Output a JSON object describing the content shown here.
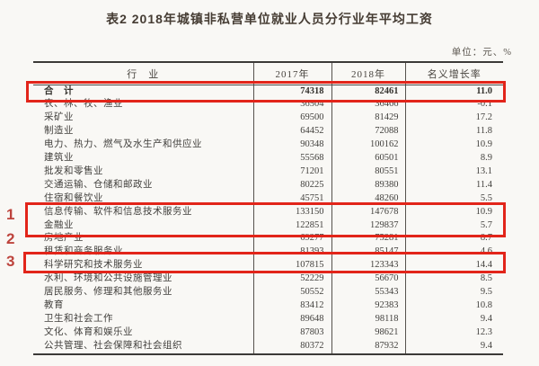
{
  "page": {
    "title": "表2  2018年城镇非私营单位就业人员分行业年平均工资",
    "unit_label": "单位：元、%"
  },
  "table": {
    "columns": [
      "行　业",
      "2017年",
      "2018年",
      "名义增长率"
    ],
    "rows": [
      {
        "industry": "合　计",
        "y2017": "74318",
        "y2018": "82461",
        "growth": "11.0",
        "total": true
      },
      {
        "industry": "农、林、牧、渔业",
        "y2017": "36504",
        "y2018": "36466",
        "growth": "-0.1"
      },
      {
        "industry": "采矿业",
        "y2017": "69500",
        "y2018": "81429",
        "growth": "17.2"
      },
      {
        "industry": "制造业",
        "y2017": "64452",
        "y2018": "72088",
        "growth": "11.8"
      },
      {
        "industry": "电力、热力、燃气及水生产和供应业",
        "y2017": "90348",
        "y2018": "100162",
        "growth": "10.9"
      },
      {
        "industry": "建筑业",
        "y2017": "55568",
        "y2018": "60501",
        "growth": "8.9"
      },
      {
        "industry": "批发和零售业",
        "y2017": "71201",
        "y2018": "80551",
        "growth": "13.1"
      },
      {
        "industry": "交通运输、仓储和邮政业",
        "y2017": "80225",
        "y2018": "89380",
        "growth": "11.4"
      },
      {
        "industry": "住宿和餐饮业",
        "y2017": "45751",
        "y2018": "48260",
        "growth": "5.5"
      },
      {
        "industry": "信息传输、软件和信息技术服务业",
        "y2017": "133150",
        "y2018": "147678",
        "growth": "10.9"
      },
      {
        "industry": "金融业",
        "y2017": "122851",
        "y2018": "129837",
        "growth": "5.7"
      },
      {
        "industry": "房地产业",
        "y2017": "69277",
        "y2018": "75281",
        "growth": "8.7"
      },
      {
        "industry": "租赁和商务服务业",
        "y2017": "81393",
        "y2018": "85147",
        "growth": "4.6"
      },
      {
        "industry": "科学研究和技术服务业",
        "y2017": "107815",
        "y2018": "123343",
        "growth": "14.4"
      },
      {
        "industry": "水利、环境和公共设施管理业",
        "y2017": "52229",
        "y2018": "56670",
        "growth": "8.5"
      },
      {
        "industry": "居民服务、修理和其他服务业",
        "y2017": "50552",
        "y2018": "55343",
        "growth": "9.5"
      },
      {
        "industry": "教育",
        "y2017": "83412",
        "y2018": "92383",
        "growth": "10.8"
      },
      {
        "industry": "卫生和社会工作",
        "y2017": "89648",
        "y2018": "98118",
        "growth": "9.4"
      },
      {
        "industry": "文化、体育和娱乐业",
        "y2017": "87803",
        "y2018": "98621",
        "growth": "12.3"
      },
      {
        "industry": "公共管理、社会保障和社会组织",
        "y2017": "80372",
        "y2018": "87932",
        "growth": "9.4"
      }
    ]
  },
  "annotations": {
    "highlight_color": "#e2251a",
    "marker_color": "#bd433c",
    "markers": [
      "1",
      "2",
      "3"
    ],
    "highlighted_rows": [
      "合计",
      "信息传输、软件和信息技术服务业",
      "金融业",
      "科学研究和技术服务业"
    ]
  }
}
